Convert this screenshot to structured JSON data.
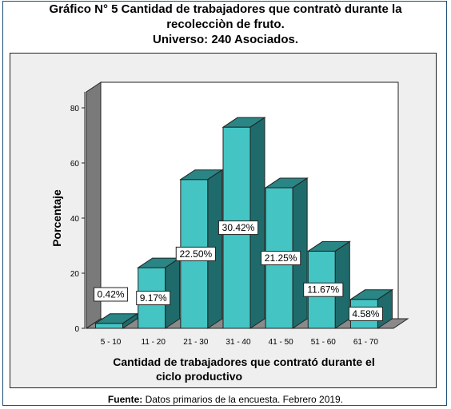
{
  "title": {
    "line1": "Gráfico N° 5 Cantidad de trabajadores que contratò durante la",
    "line2": "recolecciòn de fruto.",
    "line3": "Universo: 240 Asociados."
  },
  "source": {
    "label": "Fuente:",
    "text": " Datos primarios de la encuesta. Febrero 2019."
  },
  "chart_data": {
    "type": "bar",
    "categories": [
      "5 - 10",
      "11 - 20",
      "21 - 30",
      "31 - 40",
      "41 - 50",
      "51 - 60",
      "61 - 70"
    ],
    "values": [
      0.42,
      9.17,
      22.5,
      30.42,
      21.25,
      11.67,
      4.58
    ],
    "data_labels": [
      "0.42%",
      "9.17%",
      "22.50%",
      "30.42%",
      "21.25%",
      "11.67%",
      "4.58%"
    ],
    "plot_percent": [
      1.8,
      22,
      54,
      73,
      51,
      28,
      10.5
    ],
    "ylabel": "Porcentaje",
    "xlabel_line1": "Cantidad de trabajadores que contrató durante el",
    "xlabel_line2": "ciclo productivo",
    "yticks": [
      0,
      20,
      40,
      60,
      80
    ],
    "ylim": [
      0,
      80
    ],
    "grid": false,
    "style": "3d",
    "colors": {
      "bar_front": "#45c4c4",
      "bar_top": "#2a8585",
      "bar_side": "#1f6b6b",
      "wall_back": "#ffffff",
      "wall_side": "#7a7a7a",
      "floor": "#8a8a8a"
    }
  }
}
